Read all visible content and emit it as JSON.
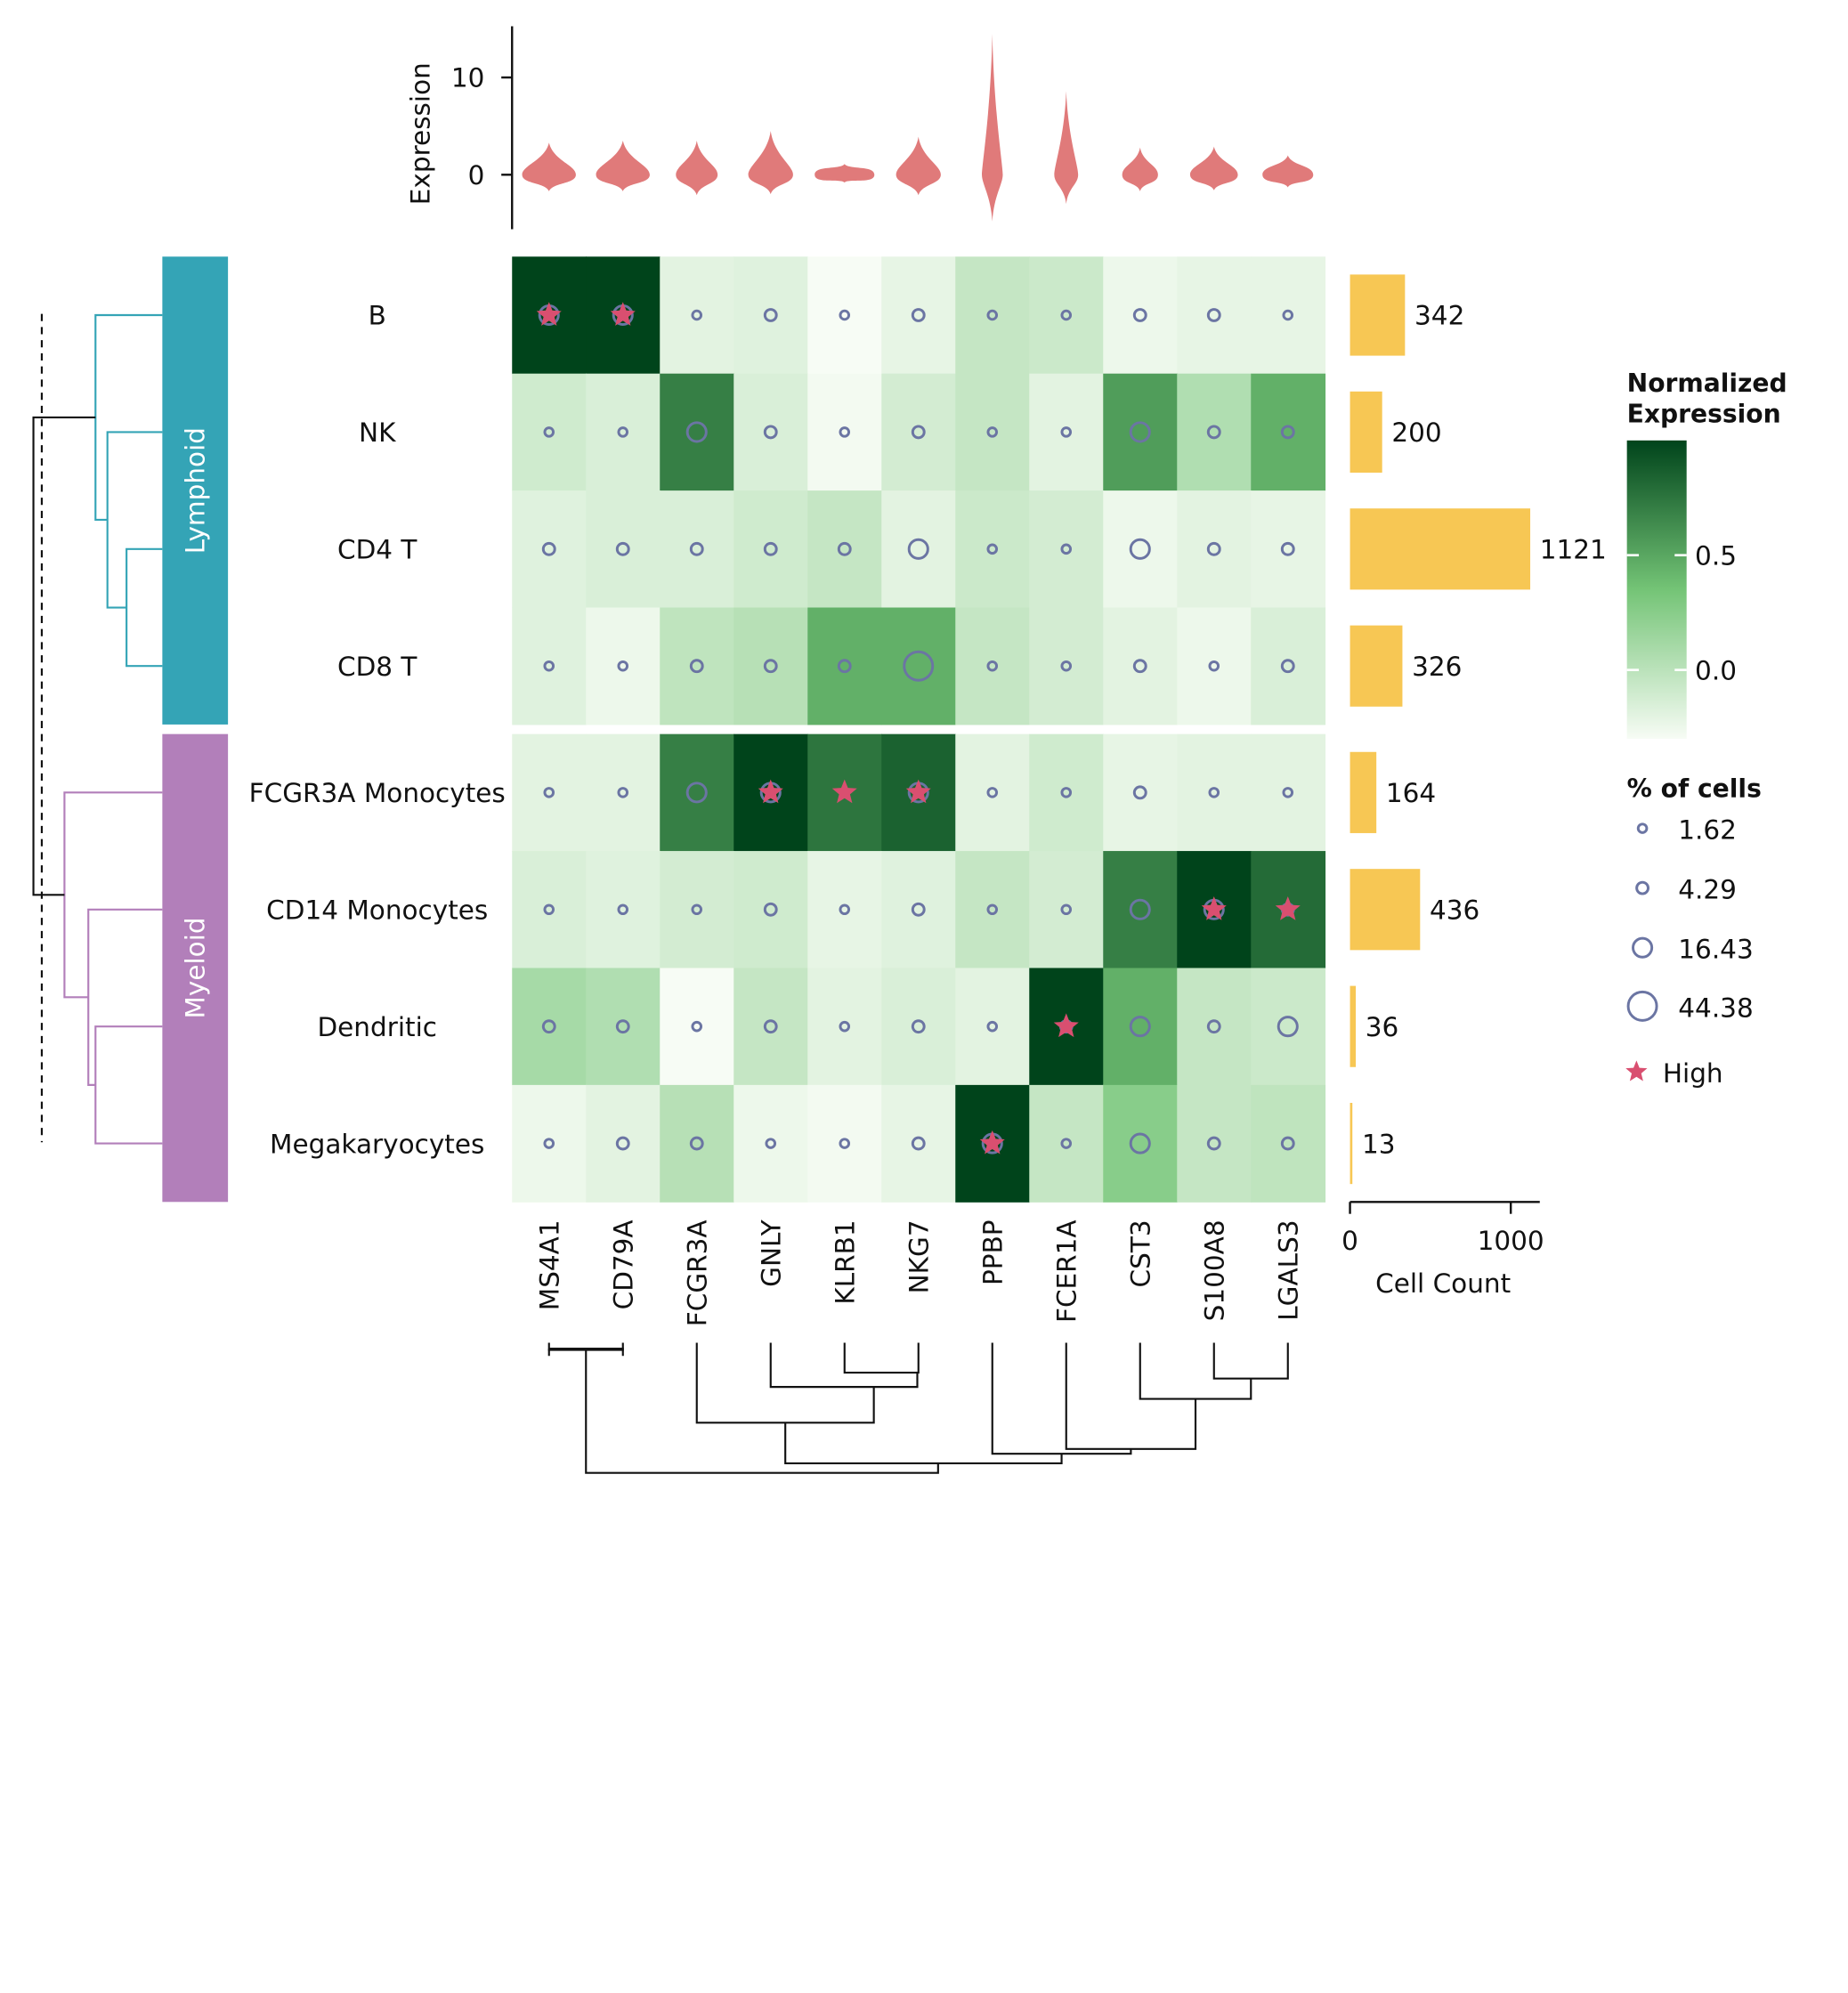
{
  "chart_data": {
    "type": "heatmap",
    "rows": [
      "B",
      "NK",
      "CD4 T",
      "CD8 T",
      "FCGR3A Monocytes",
      "CD14 Monocytes",
      "Dendritic",
      "Megakaryocytes"
    ],
    "columns": [
      "MS4A1",
      "CD79A",
      "FCGR3A",
      "GNLY",
      "KLRB1",
      "NKG7",
      "PPBP",
      "FCER1A",
      "CST3",
      "S100A8",
      "LGALS3"
    ],
    "groups": [
      {
        "name": "Lymphoid",
        "color": "#34a4b6",
        "rows": [
          "B",
          "NK",
          "CD4 T",
          "CD8 T"
        ]
      },
      {
        "name": "Myeloid",
        "color": "#b27fba",
        "rows": [
          "FCGR3A Monocytes",
          "CD14 Monocytes",
          "Dendritic",
          "Megakaryocytes"
        ]
      }
    ],
    "normalized_expression": [
      [
        1.0,
        1.0,
        -0.2,
        -0.18,
        -0.3,
        -0.22,
        -0.05,
        -0.08,
        -0.25,
        -0.22,
        -0.22
      ],
      [
        -0.1,
        -0.15,
        0.7,
        -0.15,
        -0.28,
        -0.12,
        -0.05,
        -0.2,
        0.55,
        0.05,
        0.45
      ],
      [
        -0.18,
        -0.15,
        -0.15,
        -0.1,
        -0.05,
        -0.2,
        -0.08,
        -0.12,
        -0.25,
        -0.2,
        -0.22
      ],
      [
        -0.18,
        -0.25,
        -0.02,
        0.02,
        0.45,
        0.45,
        -0.05,
        -0.12,
        -0.2,
        -0.25,
        -0.15
      ],
      [
        -0.2,
        -0.2,
        0.7,
        1.0,
        0.75,
        0.85,
        -0.2,
        -0.1,
        -0.22,
        -0.2,
        -0.2
      ],
      [
        -0.15,
        -0.18,
        -0.12,
        -0.1,
        -0.22,
        -0.18,
        -0.05,
        -0.12,
        0.7,
        1.0,
        0.8
      ],
      [
        0.1,
        0.05,
        -0.3,
        -0.05,
        -0.2,
        -0.15,
        -0.2,
        1.0,
        0.45,
        -0.05,
        -0.08
      ],
      [
        -0.25,
        -0.2,
        0.02,
        -0.25,
        -0.28,
        -0.22,
        1.0,
        -0.05,
        0.25,
        -0.05,
        -0.02
      ]
    ],
    "pct_cells": [
      [
        16.43,
        16.43,
        1.62,
        4.29,
        1.62,
        4.29,
        1.62,
        1.62,
        4.29,
        4.29,
        1.62
      ],
      [
        1.62,
        1.62,
        16.43,
        4.29,
        1.62,
        4.29,
        1.62,
        1.62,
        16.43,
        4.29,
        4.29
      ],
      [
        4.29,
        4.29,
        4.29,
        4.29,
        4.29,
        16.43,
        1.62,
        1.62,
        16.43,
        4.29,
        4.29
      ],
      [
        1.62,
        1.62,
        4.29,
        4.29,
        4.29,
        44.38,
        1.62,
        1.62,
        4.29,
        1.62,
        4.29
      ],
      [
        1.62,
        1.62,
        16.43,
        16.43,
        1.62,
        16.43,
        1.62,
        1.62,
        4.29,
        1.62,
        1.62
      ],
      [
        1.62,
        1.62,
        1.62,
        4.29,
        1.62,
        4.29,
        1.62,
        1.62,
        16.43,
        16.43,
        4.29
      ],
      [
        4.29,
        4.29,
        1.62,
        4.29,
        1.62,
        4.29,
        1.62,
        4.29,
        16.43,
        4.29,
        16.43
      ],
      [
        1.62,
        4.29,
        4.29,
        1.62,
        1.62,
        4.29,
        16.43,
        1.62,
        16.43,
        4.29,
        4.29
      ]
    ],
    "high": [
      [
        1,
        1,
        0,
        0,
        0,
        0,
        0,
        0,
        0,
        0,
        0
      ],
      [
        0,
        0,
        0,
        0,
        0,
        0,
        0,
        0,
        0,
        0,
        0
      ],
      [
        0,
        0,
        0,
        0,
        0,
        0,
        0,
        0,
        0,
        0,
        0
      ],
      [
        0,
        0,
        0,
        0,
        0,
        0,
        0,
        0,
        0,
        0,
        0
      ],
      [
        0,
        0,
        0,
        1,
        1,
        1,
        0,
        0,
        0,
        0,
        0
      ],
      [
        0,
        0,
        0,
        0,
        0,
        0,
        0,
        0,
        0,
        1,
        1
      ],
      [
        0,
        0,
        0,
        0,
        0,
        0,
        0,
        1,
        0,
        0,
        0
      ],
      [
        0,
        0,
        0,
        0,
        0,
        0,
        1,
        0,
        0,
        0,
        0
      ]
    ],
    "cell_counts": [
      342,
      200,
      1121,
      326,
      164,
      436,
      36,
      13
    ],
    "cell_count_axis": {
      "label": "Cell Count",
      "ticks": [
        0,
        1000
      ]
    },
    "violin_axis": {
      "label": "Expression",
      "ticks": [
        0,
        10
      ]
    },
    "violins": [
      {
        "min": -1.7,
        "max": 3.3,
        "width": 0.9
      },
      {
        "min": -1.7,
        "max": 3.5,
        "width": 0.9
      },
      {
        "min": -2.1,
        "max": 3.5,
        "width": 0.7
      },
      {
        "min": -2.0,
        "max": 4.5,
        "width": 0.75
      },
      {
        "min": -0.8,
        "max": 1.1,
        "width": 1.0
      },
      {
        "min": -2.1,
        "max": 3.9,
        "width": 0.75
      },
      {
        "min": -4.8,
        "max": 14.5,
        "width": 0.35
      },
      {
        "min": -3.0,
        "max": 8.6,
        "width": 0.4
      },
      {
        "min": -1.7,
        "max": 2.8,
        "width": 0.6
      },
      {
        "min": -1.6,
        "max": 2.9,
        "width": 0.8
      },
      {
        "min": -1.3,
        "max": 2.0,
        "width": 0.85
      }
    ],
    "colorbar": {
      "title_line1": "Normalized",
      "title_line2": "Expression",
      "ticks": [
        "0.5",
        "0.0"
      ],
      "range": [
        -0.3,
        1.0
      ]
    },
    "size_legend": {
      "title": "% of cells",
      "values": [
        "1.62",
        "4.29",
        "16.43",
        "44.38"
      ],
      "high_label": "High"
    },
    "colors": {
      "heat_low": "#f7fcf5",
      "heat_mid": "#74c476",
      "heat_high": "#00441b",
      "dot": "#6b75a3",
      "star": "#d94f70",
      "bar": "#f7c754",
      "violin": "#e07a7a"
    }
  }
}
